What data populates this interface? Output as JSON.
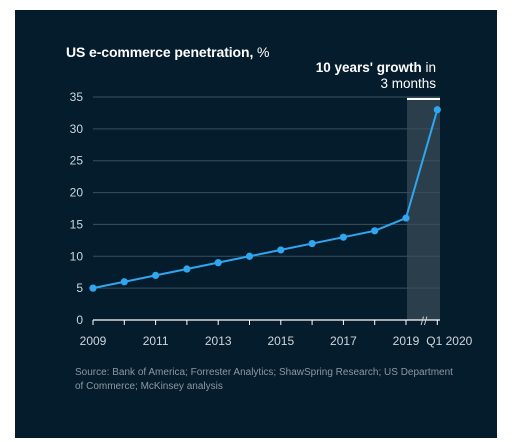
{
  "chart_data": {
    "type": "line",
    "title_bold": "US e-commerce penetration,",
    "title_rest": " %",
    "annotation_bold": "10 years' growth",
    "annotation_rest_line1": " in",
    "annotation_line2": "3 months",
    "x_labels": [
      "2009",
      "2011",
      "2013",
      "2015",
      "2017",
      "2019",
      "Q1 2020"
    ],
    "x_break_symbol": "//",
    "y_ticks": [
      0,
      5,
      10,
      15,
      20,
      25,
      30,
      35
    ],
    "ylim": [
      0,
      35
    ],
    "grid": true,
    "series": [
      {
        "x": [
          "2009",
          "2010",
          "2011",
          "2012",
          "2013",
          "2014",
          "2015",
          "2016",
          "2017",
          "2018",
          "2019",
          "Q1 2020"
        ],
        "values": [
          5,
          6,
          7,
          8,
          9,
          10,
          11,
          12,
          13,
          14,
          16,
          33
        ]
      }
    ],
    "source": "Source: Bank of America; Forrester Analytics; ShawSpring Research; US Department of Commerce; McKinsey analysis"
  },
  "colors": {
    "background": "#051c2c",
    "line": "#2fa6f0",
    "grid": "#3a4f5e",
    "highlight": "#2b3e4c",
    "highlight_bar": "#ffffff"
  }
}
